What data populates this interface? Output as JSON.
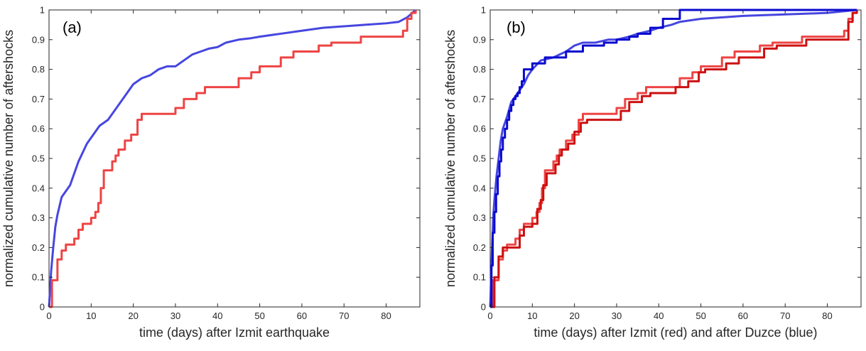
{
  "colors": {
    "izmit": "#ee4444",
    "duzce": "#4646e0",
    "izmit_dark": "#cc1111",
    "duzce_dark": "#0a0ad0",
    "axis": "#262626"
  },
  "chart_data": [
    {
      "type": "line",
      "panel_label": "(a)",
      "xlabel": "time (days) after Izmit earthquake",
      "ylabel": "normalized cumulative number of aftershocks",
      "xlim": [
        0,
        88
      ],
      "ylim": [
        0,
        1
      ],
      "xticks": [
        0,
        10,
        20,
        30,
        40,
        50,
        60,
        70,
        80
      ],
      "yticks": [
        0,
        0.1,
        0.2,
        0.3,
        0.4,
        0.5,
        0.6,
        0.7,
        0.8,
        0.9,
        1
      ],
      "ytick_labels": [
        "0",
        "0.1",
        "0.2",
        "0.3",
        "0.4",
        "0.5",
        "0.6",
        "0.7",
        "0.8",
        "0.9",
        "1"
      ],
      "grid": false,
      "series": [
        {
          "color": "#4646e0",
          "step": false,
          "x": [
            0,
            0.5,
            1,
            1.5,
            2,
            3,
            4,
            5,
            6,
            7,
            8,
            9,
            10,
            12,
            14,
            16,
            18,
            20,
            22,
            24,
            26,
            28,
            30,
            32,
            34,
            36,
            38,
            40,
            42,
            45,
            48,
            50,
            55,
            60,
            65,
            70,
            75,
            80,
            83,
            85,
            87
          ],
          "y": [
            0,
            0.12,
            0.2,
            0.27,
            0.31,
            0.37,
            0.39,
            0.41,
            0.45,
            0.49,
            0.52,
            0.55,
            0.57,
            0.61,
            0.63,
            0.67,
            0.71,
            0.75,
            0.77,
            0.78,
            0.8,
            0.81,
            0.81,
            0.83,
            0.85,
            0.86,
            0.87,
            0.875,
            0.89,
            0.9,
            0.905,
            0.91,
            0.92,
            0.93,
            0.94,
            0.945,
            0.95,
            0.955,
            0.96,
            0.975,
            1
          ]
        },
        {
          "color": "#ee4444",
          "step": true,
          "x": [
            0,
            0.7,
            2,
            3,
            4,
            6,
            7,
            8,
            10,
            11,
            11.7,
            12.3,
            13,
            15,
            15.8,
            16.5,
            18,
            19.5,
            21,
            22,
            30,
            32,
            35,
            37,
            43,
            45,
            48,
            50,
            55,
            58,
            64,
            67,
            74,
            79,
            84,
            85,
            86,
            87
          ],
          "y": [
            0,
            0.09,
            0.16,
            0.19,
            0.21,
            0.23,
            0.26,
            0.28,
            0.3,
            0.32,
            0.35,
            0.4,
            0.46,
            0.49,
            0.51,
            0.53,
            0.56,
            0.58,
            0.63,
            0.65,
            0.67,
            0.7,
            0.72,
            0.74,
            0.74,
            0.77,
            0.79,
            0.81,
            0.84,
            0.86,
            0.88,
            0.89,
            0.91,
            0.91,
            0.93,
            0.97,
            0.99,
            1
          ]
        }
      ]
    },
    {
      "type": "line",
      "panel_label": "(b)",
      "xlabel": "time (days) after Izmit (red) and after Duzce (blue)",
      "ylabel": "normalized cumulative number of aftershocks",
      "xlim": [
        0,
        88
      ],
      "ylim": [
        0,
        1
      ],
      "xticks": [
        0,
        10,
        20,
        30,
        40,
        50,
        60,
        70,
        80
      ],
      "yticks": [
        0,
        0.1,
        0.2,
        0.3,
        0.4,
        0.5,
        0.6,
        0.7,
        0.8,
        0.9,
        1
      ],
      "ytick_labels": [
        "0",
        "0.1",
        "0.2",
        "0.3",
        "0.4",
        "0.5",
        "0.6",
        "0.7",
        "0.8",
        "0.9",
        "1"
      ],
      "grid": false,
      "series": [
        {
          "color": "#ee4444",
          "step": true,
          "x": [
            0,
            0.7,
            2,
            3,
            4,
            6,
            7,
            8,
            10,
            11,
            11.7,
            12.3,
            13,
            15,
            15.8,
            16.5,
            18,
            19.5,
            21,
            22,
            30,
            32,
            35,
            37,
            43,
            45,
            48,
            50,
            55,
            58,
            64,
            67,
            74,
            79,
            84,
            85,
            86,
            87
          ],
          "y": [
            0,
            0.09,
            0.16,
            0.19,
            0.21,
            0.23,
            0.26,
            0.28,
            0.3,
            0.32,
            0.35,
            0.4,
            0.46,
            0.49,
            0.51,
            0.53,
            0.56,
            0.58,
            0.63,
            0.65,
            0.67,
            0.7,
            0.72,
            0.74,
            0.74,
            0.77,
            0.79,
            0.81,
            0.84,
            0.86,
            0.88,
            0.89,
            0.91,
            0.91,
            0.93,
            0.97,
            0.99,
            1
          ]
        },
        {
          "color": "#cc1111",
          "step": true,
          "x": [
            0,
            1,
            2,
            3,
            5,
            7,
            8,
            10,
            11.2,
            12,
            12.6,
            13.4,
            15.5,
            16.3,
            17,
            18.5,
            20,
            21.5,
            23,
            31,
            33,
            36,
            38,
            44,
            47,
            49.5,
            51,
            56,
            59,
            65,
            68,
            75,
            80,
            85,
            86,
            87
          ],
          "y": [
            0,
            0.1,
            0.17,
            0.2,
            0.2,
            0.24,
            0.27,
            0.28,
            0.33,
            0.36,
            0.41,
            0.45,
            0.48,
            0.51,
            0.53,
            0.55,
            0.59,
            0.62,
            0.63,
            0.66,
            0.69,
            0.71,
            0.72,
            0.74,
            0.76,
            0.79,
            0.8,
            0.82,
            0.84,
            0.87,
            0.88,
            0.9,
            0.9,
            0.96,
            0.99,
            1
          ]
        },
        {
          "color": "#4646e0",
          "step": false,
          "x": [
            0,
            0.3,
            0.7,
            1,
            1.5,
            2,
            2.5,
            3,
            4,
            5,
            6,
            7,
            8,
            9,
            10,
            12,
            15,
            18,
            20,
            22,
            25,
            28,
            30,
            33,
            35,
            38,
            40,
            43,
            45,
            50,
            60,
            70,
            80,
            87
          ],
          "y": [
            0,
            0.14,
            0.3,
            0.36,
            0.44,
            0.5,
            0.56,
            0.6,
            0.64,
            0.69,
            0.71,
            0.73,
            0.75,
            0.78,
            0.8,
            0.83,
            0.84,
            0.86,
            0.88,
            0.89,
            0.89,
            0.9,
            0.9,
            0.91,
            0.92,
            0.93,
            0.94,
            0.95,
            0.96,
            0.97,
            0.98,
            0.985,
            0.99,
            1
          ]
        },
        {
          "color": "#0a0ad0",
          "step": true,
          "x": [
            0,
            0.3,
            0.6,
            1,
            1.4,
            1.8,
            2.2,
            2.6,
            3,
            3.5,
            4,
            4.5,
            5,
            5.5,
            6,
            6.5,
            7,
            7.5,
            8,
            10,
            13,
            17,
            18,
            22,
            27,
            30,
            33,
            35,
            38,
            41,
            45,
            87
          ],
          "y": [
            0,
            0.14,
            0.25,
            0.32,
            0.38,
            0.44,
            0.49,
            0.53,
            0.57,
            0.6,
            0.63,
            0.66,
            0.68,
            0.7,
            0.71,
            0.72,
            0.74,
            0.76,
            0.8,
            0.82,
            0.84,
            0.84,
            0.86,
            0.88,
            0.89,
            0.9,
            0.91,
            0.92,
            0.94,
            0.97,
            1,
            1
          ]
        }
      ]
    }
  ]
}
